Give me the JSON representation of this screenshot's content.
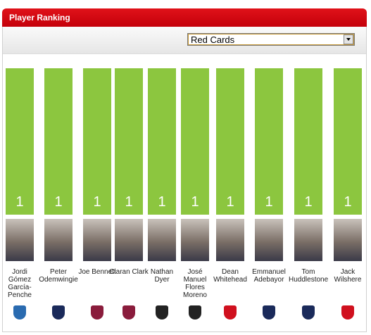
{
  "chart_data": {
    "type": "bar",
    "title": "Player Ranking",
    "selected_stat": "Red Cards",
    "categories": [
      "Jordi Gómez García-Penche",
      "Peter Odemwingie",
      "Joe Bennett",
      "Ciaran Clark",
      "Nathan Dyer",
      "José Manuel Flores Moreno",
      "Dean Whitehead",
      "Emmanuel Adebayor",
      "Tom Huddlestone",
      "Jack Wilshere"
    ],
    "values": [
      1,
      1,
      1,
      1,
      1,
      1,
      1,
      1,
      1,
      1
    ],
    "color": "#8cc63f"
  }
}
